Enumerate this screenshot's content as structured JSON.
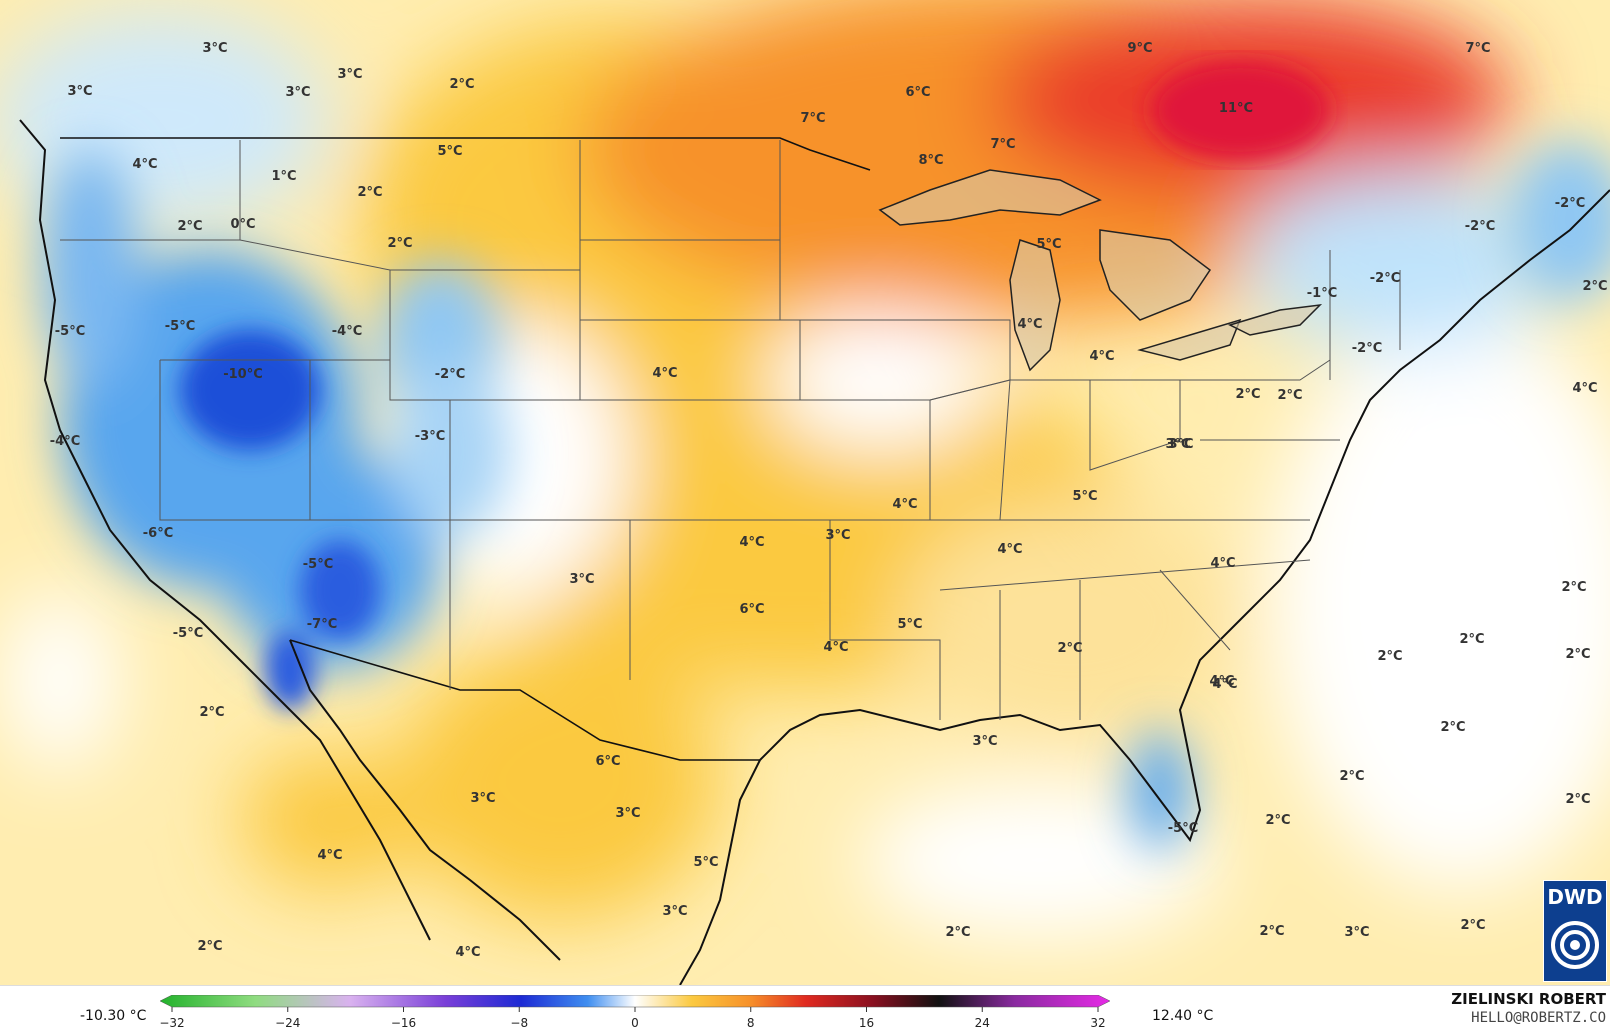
{
  "map": {
    "labels": [
      "3°C",
      "3°C",
      "3°C",
      "3°C",
      "2°C",
      "4°C",
      "5°C",
      "1°C",
      "2°C",
      "2°C",
      "0°C",
      "2°C",
      "-5°C",
      "-5°C",
      "-4°C",
      "-10°C",
      "-2°C",
      "-4°C",
      "-3°C",
      "-6°C",
      "-5°C",
      "-7°C",
      "-5°C",
      "2°C",
      "4°C",
      "2°C",
      "3°C",
      "4°C",
      "5°C",
      "3°C",
      "4°C",
      "4°C",
      "6°C",
      "3°C",
      "4°C",
      "4°C",
      "5°C",
      "6°C",
      "3°C",
      "3°C",
      "4°C",
      "5°C",
      "3°C",
      "2°C",
      "4°C",
      "4°C",
      "9°C",
      "7°C",
      "6°C",
      "11°C",
      "7°C",
      "7°C",
      "8°C",
      "5°C",
      "4°C",
      "4°C",
      "2°C",
      "3°C",
      "-2°C",
      "-1°C",
      "2°C",
      "-2°C",
      "-2°C",
      "-2°C",
      "4°C",
      "2°C",
      "2°C",
      "2°C",
      "2°C",
      "2°C",
      "2°C",
      "4°C",
      "2°C",
      "2°C",
      "3°C",
      "2°C",
      "-5°C",
      "2°C",
      "3°C",
      "2°C",
      "2°C"
    ]
  },
  "legend": {
    "min_value": "-10.30 °C",
    "max_value": "12.40 °C",
    "ticks": [
      "−32",
      "−24",
      "−16",
      "−8",
      "0",
      "8",
      "16",
      "24",
      "32"
    ]
  },
  "credit": {
    "author": "ZIELINSKI ROBERT",
    "email": "HELLO@ROBERTZ.CO",
    "logo": "DWD"
  },
  "colors": {
    "cold_deep": "#1f4fd8",
    "cold": "#59a6ee",
    "cool": "#bfe3fb",
    "neutral": "#ffffff",
    "warm_light": "#ffedb0",
    "warm": "#fbc940",
    "hot": "#f7922a",
    "very_hot": "#ea3b2a",
    "hottest": "#e0133a"
  }
}
